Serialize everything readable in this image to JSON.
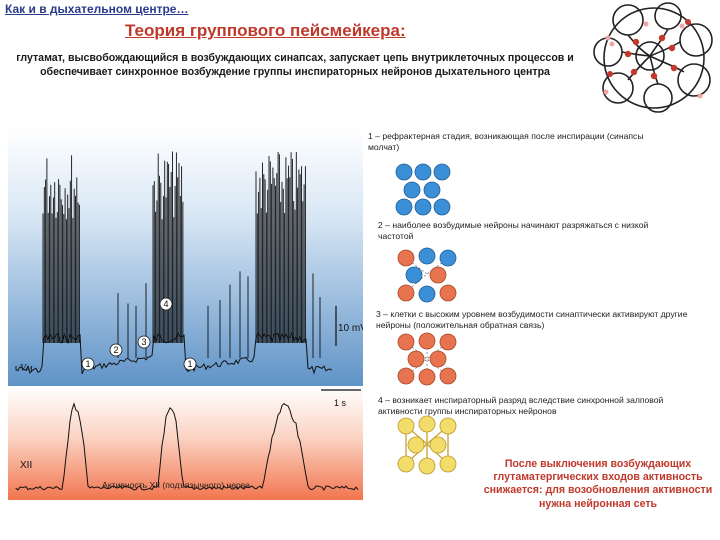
{
  "header_link": "Как и в дыхательном центре…",
  "title": "Теория группового пейсмейкера:",
  "intro": "глутамат, высвобождающийся в возбуждающих синапсах, запускает цепь внутриклеточных процессов и обеспечивает синхронное возбуждение группы инспираторных нейронов дыхательного центра",
  "trace": {
    "scale_voltage": "10 mV",
    "scale_time": "1 s",
    "vm_label": "Vм",
    "xii_label": "XII",
    "caption": "Активность XII (подъязычного) нерва",
    "markers": [
      "1",
      "2",
      "3",
      "4",
      "1"
    ]
  },
  "steps": [
    {
      "text": "1 – рефрактерная стадия, возникающая после инспирации (синапсы молчат)"
    },
    {
      "text": "2 – наиболее возбудимые нейроны начинают разряжаться с низкой частотой"
    },
    {
      "text": "3 – клетки с высоким уровнем возбудимости синаптически активируют другие нейроны (положительная обратная связь)"
    },
    {
      "text": "4 – возникает инспираторный разряд вследствие синхронной залповой активности группы инспираторных нейронов"
    }
  ],
  "conclusion": "После выключения возбуждающих глутаматергических входов активность снижается: для возобновления активности нужна нейронная сеть",
  "colors": {
    "title": "#c0392b",
    "blue_neuron": "#3b8fd6",
    "orange_neuron": "#e8734f",
    "yellow_neuron": "#f2dc6a",
    "trace_bg_top": "#5f93c7",
    "xii_bg_bottom": "#f2754e"
  }
}
